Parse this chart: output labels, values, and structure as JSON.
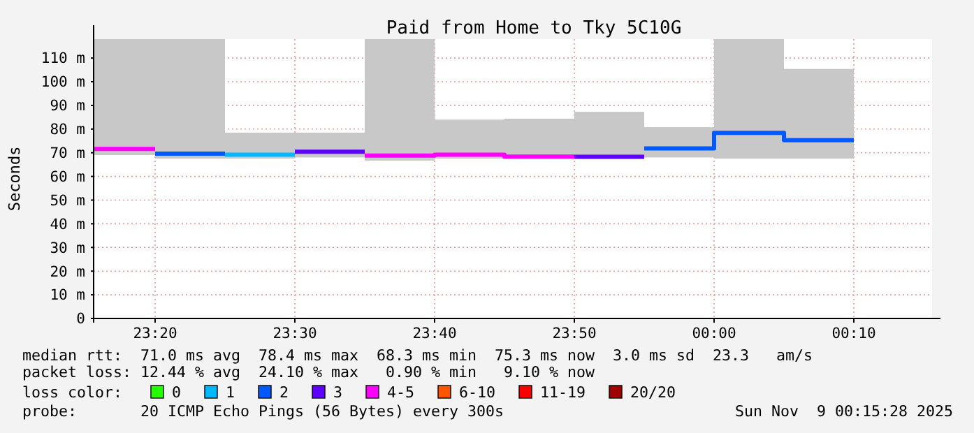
{
  "chart_data": {
    "type": "step",
    "title": "Paid from Home to Tky 5C10G",
    "ylabel": "Seconds",
    "xlim": [
      "2025-11-08T23:15:36",
      "2025-11-09T00:15:36"
    ],
    "xticks": [
      {
        "value": "2025-11-08T23:20",
        "label": "23:20"
      },
      {
        "value": "2025-11-08T23:30",
        "label": "23:30"
      },
      {
        "value": "2025-11-08T23:40",
        "label": "23:40"
      },
      {
        "value": "2025-11-08T23:50",
        "label": "23:50"
      },
      {
        "value": "2025-11-09T00:00",
        "label": "00:00"
      },
      {
        "value": "2025-11-09T00:10",
        "label": "00:10"
      }
    ],
    "ylim": [
      0,
      118
    ],
    "yticks": [
      0,
      {
        "value": 10,
        "label": "10 m"
      },
      {
        "value": 20,
        "label": "20 m"
      },
      {
        "value": 30,
        "label": "30 m"
      },
      {
        "value": 40,
        "label": "40 m"
      },
      {
        "value": 50,
        "label": "50 m"
      },
      {
        "value": 60,
        "label": "60 m"
      },
      {
        "value": 70,
        "label": "70 m"
      },
      {
        "value": 80,
        "label": "80 m"
      },
      {
        "value": 90,
        "label": "90 m"
      },
      {
        "value": 100,
        "label": "100 m"
      },
      {
        "value": 110,
        "label": "110 m"
      }
    ],
    "grid": true,
    "legend": "bottom",
    "legend_title": "loss color:",
    "series": [
      {
        "type": "bar",
        "color": "#c8c8c8",
        "x": [
          "2025-11-08T23:17:48",
          "2025-11-08T23:22:30",
          "2025-11-08T23:27:30",
          "2025-11-08T23:32:30",
          "2025-11-08T23:37:30",
          "2025-11-08T23:42:30",
          "2025-11-08T23:47:30",
          "2025-11-08T23:52:30",
          "2025-11-08T23:57:30",
          "2025-11-09T00:02:30",
          "2025-11-09T00:07:30"
        ],
        "base": [
          69,
          67.5,
          67.5,
          68,
          66.7,
          67.5,
          68,
          67.5,
          68,
          67.5,
          67.5
        ],
        "values": [
          49,
          50.5,
          11,
          10.5,
          51.3,
          16.5,
          16.4,
          19.8,
          12.8,
          50.5,
          37.9
        ]
      },
      {
        "name": "0",
        "color": "#26ff00"
      },
      {
        "name": "1",
        "color": "#00b8ff",
        "x": [
          "2025-11-08T23:25",
          "2025-11-08T23:30"
        ],
        "values": [
          69.2,
          69.2
        ]
      },
      {
        "name": "2",
        "color": "#0059ff",
        "x": [
          "2025-11-08T23:20",
          "2025-11-08T23:25"
        ],
        "values": [
          69.6,
          69.6
        ]
      },
      {
        "name": "3",
        "color": "#5e00ff",
        "x": [
          "2025-11-08T23:30",
          "2025-11-08T23:35"
        ],
        "values": [
          70.4,
          70.4
        ]
      },
      {
        "name": "4-5",
        "color": "#ff00ff",
        "x": [
          "2025-11-08T23:15:36",
          "2025-11-08T23:20"
        ],
        "values": [
          71.6,
          71.6
        ]
      },
      {
        "name": "6-10",
        "color": "#ff5500"
      },
      {
        "name": "11-19",
        "color": "#ff0000"
      },
      {
        "name": "20/20",
        "color": "#a10000"
      },
      {
        "color": "#0059ff",
        "x": [
          "2025-11-08T23:55",
          "2025-11-09T00:00",
          "2025-11-09T00:05",
          "2025-11-09T00:10"
        ],
        "values": [
          71.8,
          78.4,
          75.3,
          75.3
        ]
      },
      {
        "color": "#5e00ff",
        "x": [
          "2025-11-08T23:50",
          "2025-11-08T23:55"
        ],
        "values": [
          68.3,
          68.3
        ]
      },
      {
        "color": "#ff00ff",
        "x": [
          "2025-11-08T23:35",
          "2025-11-08T23:40",
          "2025-11-08T23:45",
          "2025-11-08T23:50"
        ],
        "values": [
          68.8,
          69.2,
          68.4,
          68.4
        ]
      }
    ],
    "annotations": [
      "median rtt:  71.0 ms avg  78.4 ms max  68.3 ms min  75.3 ms now  3.0 ms sd  23.3   am/s",
      "packet loss: 12.44 % avg  24.10 % max   0.90 % min   9.10 % now",
      "probe:       20 ICMP Echo Pings (56 Bytes) every 300s",
      "Sun Nov  9 00:15:28 2025"
    ]
  }
}
